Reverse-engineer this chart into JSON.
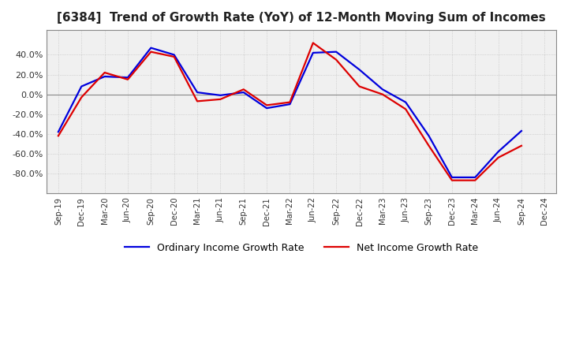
{
  "title": "[6384]  Trend of Growth Rate (YoY) of 12-Month Moving Sum of Incomes",
  "title_fontsize": 11,
  "background_color": "#ffffff",
  "plot_background_color": "#f0f0f0",
  "grid_color": "#bbbbbb",
  "ylim": [
    -1.0,
    0.65
  ],
  "yticks": [
    -0.8,
    -0.6,
    -0.4,
    -0.2,
    0.0,
    0.2,
    0.4
  ],
  "ytick_labels": [
    "-80.0%",
    "-60.0%",
    "-40.0%",
    "-20.0%",
    "0.0%",
    "20.0%",
    "40.0%"
  ],
  "x_labels": [
    "Sep-19",
    "Dec-19",
    "Mar-20",
    "Jun-20",
    "Sep-20",
    "Dec-20",
    "Mar-21",
    "Jun-21",
    "Sep-21",
    "Dec-21",
    "Mar-22",
    "Jun-22",
    "Sep-22",
    "Dec-22",
    "Mar-23",
    "Jun-23",
    "Sep-23",
    "Dec-23",
    "Mar-24",
    "Jun-24",
    "Sep-24",
    "Dec-24"
  ],
  "ordinary_income": [
    -0.38,
    0.08,
    0.18,
    0.17,
    0.47,
    0.4,
    0.02,
    -0.01,
    0.02,
    -0.14,
    -0.1,
    0.42,
    0.43,
    0.25,
    0.05,
    -0.08,
    -0.42,
    -0.84,
    -0.84,
    -0.58,
    -0.37,
    null
  ],
  "net_income": [
    -0.42,
    -0.03,
    0.22,
    0.15,
    0.43,
    0.38,
    -0.07,
    -0.05,
    0.05,
    -0.11,
    -0.08,
    0.52,
    0.35,
    0.08,
    0.0,
    -0.15,
    -0.52,
    -0.87,
    -0.87,
    -0.64,
    -0.52,
    null
  ],
  "ordinary_color": "#0000dd",
  "net_color": "#dd0000",
  "line_width": 1.6,
  "legend_ordinary": "Ordinary Income Growth Rate",
  "legend_net": "Net Income Growth Rate"
}
